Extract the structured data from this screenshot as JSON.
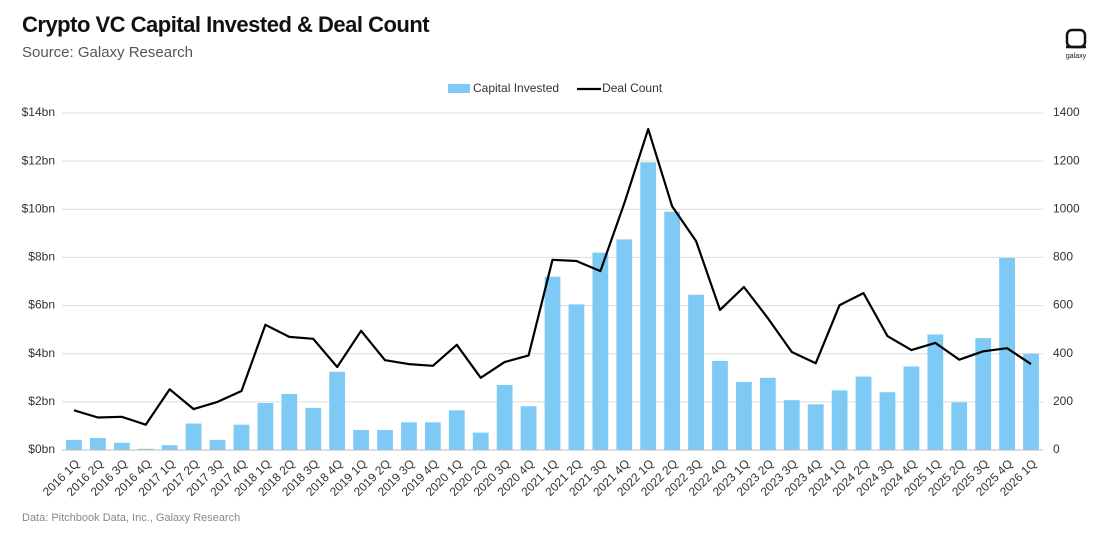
{
  "chart_data": {
    "type": "bar-line",
    "title": "Crypto VC Capital Invested & Deal Count",
    "subtitle": "Source: Galaxy Research",
    "note": "Data: Pitchbook Data, Inc., Galaxy Research",
    "logo_text": "galaxy",
    "categories": [
      "2016 1Q",
      "2016 2Q",
      "2016 3Q",
      "2016 4Q",
      "2017 1Q",
      "2017 2Q",
      "2017 3Q",
      "2017 4Q",
      "2018 1Q",
      "2018 2Q",
      "2018 3Q",
      "2018 4Q",
      "2019 1Q",
      "2019 2Q",
      "2019 3Q",
      "2019 4Q",
      "2020 1Q",
      "2020 2Q",
      "2020 3Q",
      "2020 4Q",
      "2021 1Q",
      "2021 2Q",
      "2021 3Q",
      "2021 4Q",
      "2022 1Q",
      "2022 2Q",
      "2022 3Q",
      "2022 4Q",
      "2023 1Q",
      "2023 2Q",
      "2023 3Q",
      "2023 4Q",
      "2024 1Q",
      "2024 2Q",
      "2024 3Q",
      "2024 4Q",
      "2025 1Q",
      "2025 2Q",
      "2025 3Q",
      "2025 4Q",
      "2026 1Q"
    ],
    "series": [
      {
        "name": "Capital Invested",
        "color": "#7fcaf5",
        "type": "bar",
        "values": [
          0.42,
          0.5,
          0.3,
          0.05,
          0.2,
          1.1,
          0.42,
          1.05,
          1.95,
          2.33,
          1.75,
          3.25,
          0.83,
          0.83,
          1.15,
          1.15,
          1.65,
          0.72,
          2.7,
          1.82,
          7.2,
          6.05,
          8.2,
          8.75,
          11.95,
          9.9,
          6.45,
          3.7,
          2.83,
          3.0,
          2.07,
          1.9,
          2.48,
          3.05,
          2.4,
          3.47,
          4.8,
          1.98,
          4.65,
          7.98,
          4.0
        ]
      },
      {
        "name": "Deal Count",
        "color": "#000000",
        "type": "line",
        "axis": "y2",
        "values": [
          165,
          135,
          138,
          105,
          252,
          170,
          200,
          245,
          520,
          470,
          462,
          345,
          495,
          373,
          357,
          350,
          437,
          300,
          365,
          393,
          790,
          785,
          743,
          1025,
          1333,
          1013,
          868,
          582,
          677,
          548,
          407,
          360,
          602,
          652,
          473,
          415,
          445,
          375,
          410,
          423,
          357
        ]
      }
    ],
    "ylim": [
      0,
      14
    ],
    "yticks": [
      {
        "value": 0,
        "label": "$0bn"
      },
      {
        "value": 2,
        "label": "$2bn"
      },
      {
        "value": 4,
        "label": "$4bn"
      },
      {
        "value": 6,
        "label": "$6bn"
      },
      {
        "value": 8,
        "label": "$8bn"
      },
      {
        "value": 10,
        "label": "$10bn"
      },
      {
        "value": 12,
        "label": "$12bn"
      },
      {
        "value": 14,
        "label": "$14bn"
      }
    ],
    "y2lim": [
      0,
      1400
    ],
    "y2ticks": [
      0,
      200,
      400,
      600,
      800,
      1000,
      1200,
      1400
    ],
    "grid": true,
    "legend": "top"
  }
}
